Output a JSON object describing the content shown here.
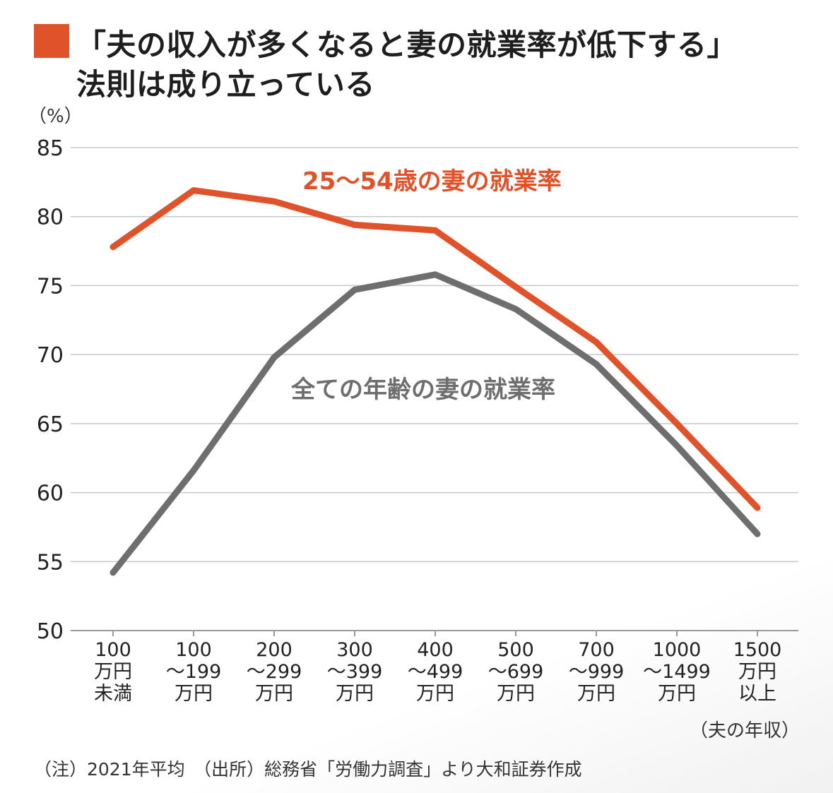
{
  "title": {
    "line1": "「夫の収入が多くなると妻の就業率が低下する」",
    "line2": "法則は成り立っている"
  },
  "footnote": "（注）2021年平均　（出所）総務省「労働力調査」より大和証券作成",
  "colors": {
    "accent": "#e0522a",
    "gray_series": "#6e6e6e",
    "grid": "#c8c8c8"
  },
  "chart_data": {
    "type": "line",
    "ylabel": "（%）",
    "xlabel": "（夫の年収）",
    "ylim": [
      50,
      85
    ],
    "yticks": [
      50,
      55,
      60,
      65,
      70,
      75,
      80,
      85
    ],
    "grid": "horizontal",
    "categories": [
      [
        "100",
        "万円",
        "未満"
      ],
      [
        "100",
        "～199",
        "万円"
      ],
      [
        "200",
        "～299",
        "万円"
      ],
      [
        "300",
        "～399",
        "万円"
      ],
      [
        "400",
        "～499",
        "万円"
      ],
      [
        "500",
        "～699",
        "万円"
      ],
      [
        "700",
        "～999",
        "万円"
      ],
      [
        "1000",
        "～1499",
        "万円"
      ],
      [
        "1500",
        "万円",
        "以上"
      ]
    ],
    "series": [
      {
        "name": "25～54歳の妻の就業率",
        "color": "#e0522a",
        "values": [
          77.8,
          81.9,
          81.1,
          79.4,
          79.0,
          74.9,
          70.9,
          65.0,
          58.9
        ]
      },
      {
        "name": "全ての年齢の妻の就業率",
        "color": "#6e6e6e",
        "values": [
          54.2,
          61.6,
          69.8,
          74.7,
          75.8,
          73.3,
          69.3,
          63.4,
          57.0
        ]
      }
    ]
  }
}
